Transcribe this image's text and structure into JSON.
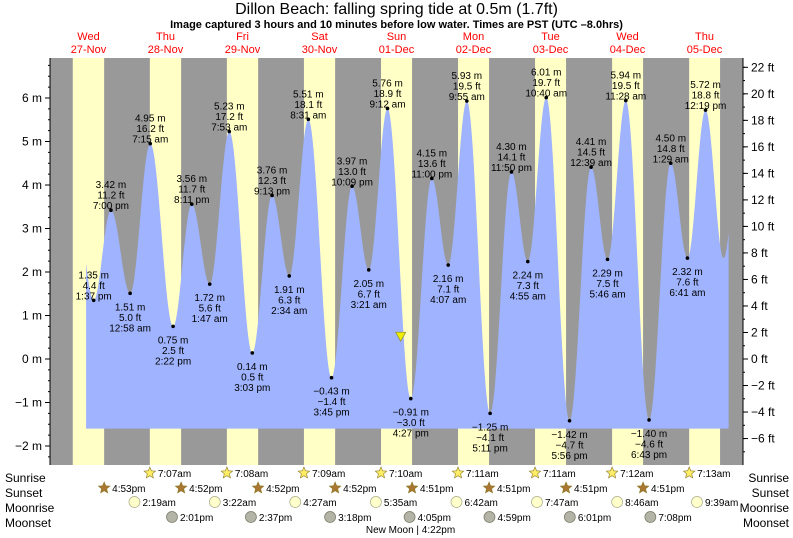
{
  "header": {
    "title": "Dillon Beach: falling  spring tide at 0.5m (1.7ft)",
    "subtitle": "Image captured 3 hours and 10 minutes before low water. Times are PST (UTC –8.0hrs)"
  },
  "chart_data": {
    "type": "area",
    "title": "Dillon Beach: falling  spring tide at 0.5m (1.7ft)",
    "days": [
      {
        "dow": "Wed",
        "date": "27-Nov"
      },
      {
        "dow": "Thu",
        "date": "28-Nov"
      },
      {
        "dow": "Fri",
        "date": "29-Nov"
      },
      {
        "dow": "Sat",
        "date": "30-Nov"
      },
      {
        "dow": "Sun",
        "date": "01-Dec"
      },
      {
        "dow": "Mon",
        "date": "02-Dec"
      },
      {
        "dow": "Tue",
        "date": "03-Dec"
      },
      {
        "dow": "Wed",
        "date": "04-Dec"
      },
      {
        "dow": "Thu",
        "date": "05-Dec"
      }
    ],
    "x_range_hours": [
      0,
      216
    ],
    "y_left": {
      "unit": "m",
      "range": [
        -2.5,
        7.0
      ],
      "ticks": [
        -2,
        -1,
        0,
        1,
        2,
        3,
        4,
        5,
        6
      ],
      "tick_labels": [
        "−2 m",
        "−1 m",
        "0 m",
        "1 m",
        "2 m",
        "3 m",
        "4 m",
        "5 m",
        "6 m"
      ]
    },
    "y_right": {
      "unit": "ft",
      "ticks": [
        -6,
        -4,
        -2,
        0,
        2,
        4,
        6,
        8,
        10,
        12,
        14,
        16,
        18,
        20,
        22
      ],
      "tick_labels": [
        "−6 ft",
        "−4 ft",
        "−2 ft",
        "0 ft",
        "2 ft",
        "4 ft",
        "6 ft",
        "8 ft",
        "10 ft",
        "12 ft",
        "14 ft",
        "16 ft",
        "18 ft",
        "20 ft",
        "22 ft"
      ]
    },
    "tide_series_start_hour": 11.25,
    "tide_series_end_hour": 211.5,
    "extremes": [
      {
        "t": 13.62,
        "m": 1.35,
        "ft": "4.4 ft",
        "time": "1:37 pm",
        "mlabel": "1.35 m",
        "type": "high"
      },
      {
        "t": 19.0,
        "m": 3.42,
        "ft": "11.2 ft",
        "time": "7:00 pm",
        "mlabel": "3.42 m",
        "type": "high"
      },
      {
        "t": 24.97,
        "m": 1.51,
        "ft": "5.0 ft",
        "time": "12:58 am",
        "mlabel": "1.51 m",
        "type": "low"
      },
      {
        "t": 31.25,
        "m": 4.95,
        "ft": "16.2 ft",
        "time": "7:15 am",
        "mlabel": "4.95 m",
        "type": "high"
      },
      {
        "t": 38.37,
        "m": 0.75,
        "ft": "2.5 ft",
        "time": "2:22 pm",
        "mlabel": "0.75 m",
        "type": "low"
      },
      {
        "t": 44.18,
        "m": 3.56,
        "ft": "11.7 ft",
        "time": "8:11 pm",
        "mlabel": "3.56 m",
        "type": "high"
      },
      {
        "t": 49.78,
        "m": 1.72,
        "ft": "5.6 ft",
        "time": "1:47 am",
        "mlabel": "1.72 m",
        "type": "low"
      },
      {
        "t": 55.88,
        "m": 5.23,
        "ft": "17.2 ft",
        "time": "7:53 am",
        "mlabel": "5.23 m",
        "type": "high"
      },
      {
        "t": 63.05,
        "m": 0.14,
        "ft": "0.5 ft",
        "time": "3:03 pm",
        "mlabel": "0.14 m",
        "type": "low"
      },
      {
        "t": 69.22,
        "m": 3.76,
        "ft": "12.3 ft",
        "time": "9:13 pm",
        "mlabel": "3.76 m",
        "type": "high"
      },
      {
        "t": 74.57,
        "m": 1.91,
        "ft": "6.3 ft",
        "time": "2:34 am",
        "mlabel": "1.91 m",
        "type": "low"
      },
      {
        "t": 80.52,
        "m": 5.51,
        "ft": "18.1 ft",
        "time": "8:31 am",
        "mlabel": "5.51 m",
        "type": "high"
      },
      {
        "t": 87.75,
        "m": -0.43,
        "ft": "−1.4 ft",
        "time": "3:45 pm",
        "mlabel": "−0.43 m",
        "type": "low"
      },
      {
        "t": 94.15,
        "m": 3.97,
        "ft": "13.0 ft",
        "time": "10:09 pm",
        "mlabel": "3.97 m",
        "type": "high"
      },
      {
        "t": 99.35,
        "m": 2.05,
        "ft": "6.7 ft",
        "time": "3:21 am",
        "mlabel": "2.05 m",
        "type": "low"
      },
      {
        "t": 105.2,
        "m": 5.76,
        "ft": "18.9 ft",
        "time": "9:12 am",
        "mlabel": "5.76 m",
        "type": "high"
      },
      {
        "t": 112.45,
        "m": -0.91,
        "ft": "−3.0 ft",
        "time": "4:27 pm",
        "mlabel": "−0.91 m",
        "type": "low"
      },
      {
        "t": 119.0,
        "m": 4.15,
        "ft": "13.6 ft",
        "time": "11:00 pm",
        "mlabel": "4.15 m",
        "type": "high"
      },
      {
        "t": 124.12,
        "m": 2.16,
        "ft": "7.1 ft",
        "time": "4:07 am",
        "mlabel": "2.16 m",
        "type": "low"
      },
      {
        "t": 129.92,
        "m": 5.93,
        "ft": "19.5 ft",
        "time": "9:55 am",
        "mlabel": "5.93 m",
        "type": "high"
      },
      {
        "t": 137.18,
        "m": -1.25,
        "ft": "−4.1 ft",
        "time": "5:11 pm",
        "mlabel": "−1.25 m",
        "type": "low"
      },
      {
        "t": 143.83,
        "m": 4.3,
        "ft": "14.1 ft",
        "time": "11:50 pm",
        "mlabel": "4.30 m",
        "type": "high"
      },
      {
        "t": 148.92,
        "m": 2.24,
        "ft": "7.3 ft",
        "time": "4:55 am",
        "mlabel": "2.24 m",
        "type": "low"
      },
      {
        "t": 154.67,
        "m": 6.01,
        "ft": "19.7 ft",
        "time": "10:40 am",
        "mlabel": "6.01 m",
        "type": "high"
      },
      {
        "t": 161.93,
        "m": -1.42,
        "ft": "−4.7 ft",
        "time": "5:56 pm",
        "mlabel": "−1.42 m",
        "type": "low"
      },
      {
        "t": 168.65,
        "m": 4.41,
        "ft": "14.5 ft",
        "time": "12:39 am",
        "mlabel": "4.41 m",
        "type": "high"
      },
      {
        "t": 173.77,
        "m": 2.29,
        "ft": "7.5 ft",
        "time": "5:46 am",
        "mlabel": "2.29 m",
        "type": "low"
      },
      {
        "t": 179.47,
        "m": 5.94,
        "ft": "19.5 ft",
        "time": "11:28 am",
        "mlabel": "5.94 m",
        "type": "high"
      },
      {
        "t": 186.72,
        "m": -1.4,
        "ft": "−4.6 ft",
        "time": "6:43 pm",
        "mlabel": "−1.40 m",
        "type": "low"
      },
      {
        "t": 193.48,
        "m": 4.5,
        "ft": "14.8 ft",
        "time": "1:29 am",
        "mlabel": "4.50 m",
        "type": "high"
      },
      {
        "t": 198.68,
        "m": 2.32,
        "ft": "7.6 ft",
        "time": "6:41 am",
        "mlabel": "2.32 m",
        "type": "low"
      },
      {
        "t": 204.32,
        "m": 5.72,
        "ft": "18.8 ft",
        "time": "12:19 pm",
        "mlabel": "5.72 m",
        "type": "high"
      }
    ],
    "current": {
      "t": 109.3,
      "m": 0.5
    },
    "nights": [
      [
        0,
        7.1
      ],
      [
        16.88,
        31.12
      ],
      [
        40.87,
        55.13
      ],
      [
        64.87,
        79.15
      ],
      [
        88.87,
        103.17
      ],
      [
        112.85,
        127.18
      ],
      [
        136.85,
        151.18
      ],
      [
        160.85,
        175.2
      ],
      [
        184.85,
        199.22
      ],
      [
        208.85,
        216
      ]
    ],
    "sunrise": [
      {
        "t": 31.12,
        "label": "7:07am"
      },
      {
        "t": 55.13,
        "label": "7:08am"
      },
      {
        "t": 79.15,
        "label": "7:09am"
      },
      {
        "t": 103.17,
        "label": "7:10am"
      },
      {
        "t": 127.18,
        "label": "7:11am"
      },
      {
        "t": 151.18,
        "label": "7:11am"
      },
      {
        "t": 175.2,
        "label": "7:12am"
      },
      {
        "t": 199.22,
        "label": "7:13am"
      }
    ],
    "sunset": [
      {
        "t": 16.88,
        "label": "4:53pm"
      },
      {
        "t": 40.87,
        "label": "4:52pm"
      },
      {
        "t": 64.87,
        "label": "4:52pm"
      },
      {
        "t": 88.87,
        "label": "4:52pm"
      },
      {
        "t": 112.85,
        "label": "4:51pm"
      },
      {
        "t": 136.85,
        "label": "4:51pm"
      },
      {
        "t": 160.85,
        "label": "4:51pm"
      },
      {
        "t": 184.85,
        "label": "4:51pm"
      }
    ],
    "moonrise": [
      {
        "t": 26.32,
        "label": "2:19am"
      },
      {
        "t": 51.37,
        "label": "3:22am"
      },
      {
        "t": 76.45,
        "label": "4:27am"
      },
      {
        "t": 101.58,
        "label": "5:35am"
      },
      {
        "t": 126.7,
        "label": "6:42am"
      },
      {
        "t": 151.78,
        "label": "7:47am"
      },
      {
        "t": 176.77,
        "label": "8:46am"
      },
      {
        "t": 201.65,
        "label": "9:39am"
      }
    ],
    "moonset": [
      {
        "t": 38.02,
        "label": "2:01pm"
      },
      {
        "t": 62.62,
        "label": "2:37pm"
      },
      {
        "t": 87.3,
        "label": "3:18pm"
      },
      {
        "t": 112.08,
        "label": "4:05pm"
      },
      {
        "t": 136.98,
        "label": "4:59pm"
      },
      {
        "t": 162.02,
        "label": "6:01pm"
      },
      {
        "t": 187.13,
        "label": "7:08pm"
      }
    ],
    "row_labels": {
      "sunrise": "Sunrise",
      "sunset": "Sunset",
      "moonrise": "Moonrise",
      "moonset": "Moonset"
    },
    "moon_phase": {
      "t": 112.37,
      "label": "New Moon | 4:22pm"
    },
    "colors": {
      "day": "#ffffc6",
      "night": "#999999",
      "tide": "#9fb3ff",
      "sunrise_star": "#ffee66",
      "sunset_star": "#aa7733",
      "moonrise": "#ffffcc",
      "moonset": "#b3b3a6",
      "current_marker": "#eeee00",
      "day_header": "#ff0000"
    }
  }
}
